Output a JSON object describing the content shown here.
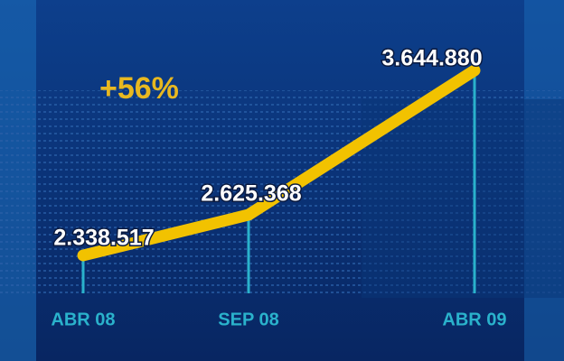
{
  "chart_data": {
    "type": "line",
    "annotation": "+56%",
    "categories": [
      "ABR 08",
      "SEP 08",
      "ABR 09"
    ],
    "series": [
      {
        "color": "#f2c200",
        "values": [
          2338517,
          2625368,
          3644880
        ],
        "value_labels": [
          "2.338.517",
          "2.625.368",
          "3.644.880"
        ]
      }
    ]
  }
}
